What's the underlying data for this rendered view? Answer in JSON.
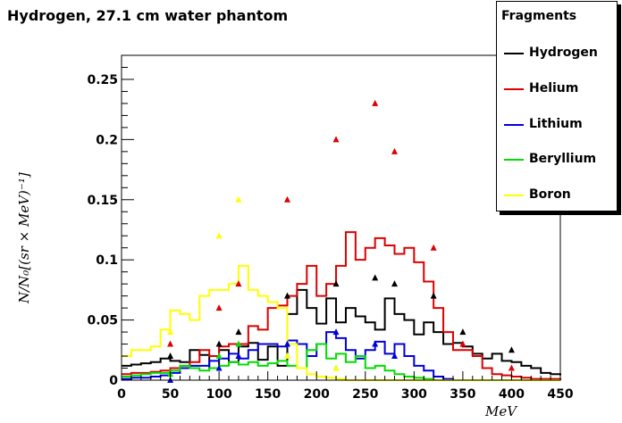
{
  "chart_data": {
    "type": "line",
    "title": "Hydrogen, 27.1 cm water phantom",
    "xlabel": "MeV",
    "ylabel": "N/N₀[(sr × MeV)⁻¹]",
    "xlim": [
      0,
      450
    ],
    "ylim": [
      0,
      0.27
    ],
    "xticks": [
      "0",
      "50",
      "100",
      "150",
      "200",
      "250",
      "300",
      "350",
      "400",
      "450"
    ],
    "yticks": [
      "0",
      "0.05",
      "0.1",
      "0.15",
      "0.2",
      "0.25"
    ],
    "grid": false,
    "legend_title": "Fragments",
    "legend_position": "top-right",
    "bin_width": 10,
    "series": [
      {
        "name": "Hydrogen",
        "color": "#000000",
        "style": "step",
        "y": [
          0.012,
          0.013,
          0.014,
          0.015,
          0.018,
          0.016,
          0.015,
          0.025,
          0.021,
          0.01,
          0.025,
          0.015,
          0.028,
          0.031,
          0.017,
          0.028,
          0.012,
          0.055,
          0.075,
          0.06,
          0.047,
          0.068,
          0.048,
          0.06,
          0.053,
          0.048,
          0.042,
          0.068,
          0.055,
          0.05,
          0.038,
          0.048,
          0.04,
          0.03,
          0.031,
          0.028,
          0.022,
          0.018,
          0.022,
          0.016,
          0.015,
          0.012,
          0.01,
          0.006,
          0.005,
          0.004
        ]
      },
      {
        "name": "Helium",
        "color": "#dd0000",
        "style": "step",
        "y": [
          0.005,
          0.006,
          0.006,
          0.007,
          0.008,
          0.01,
          0.012,
          0.015,
          0.025,
          0.02,
          0.028,
          0.03,
          0.03,
          0.045,
          0.042,
          0.06,
          0.062,
          0.07,
          0.08,
          0.095,
          0.07,
          0.08,
          0.095,
          0.123,
          0.1,
          0.11,
          0.118,
          0.112,
          0.105,
          0.11,
          0.098,
          0.082,
          0.06,
          0.04,
          0.025,
          0.025,
          0.02,
          0.01,
          0.005,
          0.004,
          0.003,
          0.002,
          0.001,
          0.001,
          0.001,
          0.0
        ]
      },
      {
        "name": "Lithium",
        "color": "#0000dd",
        "style": "step",
        "y": [
          0.001,
          0.002,
          0.002,
          0.003,
          0.004,
          0.006,
          0.01,
          0.012,
          0.012,
          0.016,
          0.018,
          0.022,
          0.018,
          0.025,
          0.03,
          0.03,
          0.028,
          0.033,
          0.03,
          0.02,
          0.03,
          0.04,
          0.035,
          0.025,
          0.018,
          0.025,
          0.032,
          0.022,
          0.03,
          0.02,
          0.012,
          0.008,
          0.003,
          0.001,
          0.0,
          0.0,
          0.0,
          0.0,
          0.0,
          0.0,
          0.0,
          0.0,
          0.0,
          0.0,
          0.0,
          0.0
        ]
      },
      {
        "name": "Beryllium",
        "color": "#00dd00",
        "style": "step",
        "y": [
          0.003,
          0.004,
          0.005,
          0.006,
          0.006,
          0.008,
          0.012,
          0.01,
          0.008,
          0.01,
          0.012,
          0.015,
          0.013,
          0.015,
          0.012,
          0.014,
          0.016,
          0.012,
          0.01,
          0.025,
          0.03,
          0.018,
          0.022,
          0.015,
          0.02,
          0.01,
          0.012,
          0.008,
          0.005,
          0.003,
          0.002,
          0.001,
          0.0,
          0.0,
          0.0,
          0.0,
          0.0,
          0.0,
          0.0,
          0.0,
          0.0,
          0.0,
          0.0,
          0.0,
          0.0,
          0.0
        ]
      },
      {
        "name": "Boron",
        "color": "#ffff00",
        "style": "step",
        "y": [
          0.02,
          0.025,
          0.025,
          0.028,
          0.042,
          0.058,
          0.055,
          0.05,
          0.07,
          0.075,
          0.075,
          0.08,
          0.095,
          0.075,
          0.07,
          0.065,
          0.06,
          0.03,
          0.01,
          0.005,
          0.003,
          0.002,
          0.001,
          0.0,
          0.0,
          0.0,
          0.0,
          0.0,
          0.0,
          0.0,
          0.0,
          0.0,
          0.0,
          0.0,
          0.0,
          0.0,
          0.0,
          0.0,
          0.0,
          0.0,
          0.0,
          0.0,
          0.0,
          0.0,
          0.0,
          0.0
        ]
      }
    ],
    "markers": [
      {
        "series": "Hydrogen",
        "color": "#000000",
        "points": [
          [
            50,
            0.02
          ],
          [
            100,
            0.03
          ],
          [
            120,
            0.04
          ],
          [
            170,
            0.07
          ],
          [
            220,
            0.08
          ],
          [
            260,
            0.085
          ],
          [
            280,
            0.08
          ],
          [
            320,
            0.07
          ],
          [
            350,
            0.04
          ],
          [
            400,
            0.025
          ]
        ]
      },
      {
        "series": "Helium",
        "color": "#dd0000",
        "points": [
          [
            50,
            0.03
          ],
          [
            100,
            0.06
          ],
          [
            120,
            0.08
          ],
          [
            170,
            0.15
          ],
          [
            220,
            0.2
          ],
          [
            260,
            0.23
          ],
          [
            280,
            0.19
          ],
          [
            320,
            0.11
          ],
          [
            350,
            0.03
          ],
          [
            400,
            0.01
          ]
        ]
      },
      {
        "series": "Lithium",
        "color": "#0000dd",
        "points": [
          [
            50,
            0.0
          ],
          [
            100,
            0.01
          ],
          [
            120,
            0.02
          ],
          [
            170,
            0.03
          ],
          [
            220,
            0.04
          ],
          [
            260,
            0.03
          ],
          [
            280,
            0.02
          ]
        ]
      },
      {
        "series": "Beryllium",
        "color": "#00dd00",
        "points": [
          [
            50,
            0.005
          ],
          [
            100,
            0.02
          ],
          [
            120,
            0.03
          ],
          [
            170,
            0.02
          ],
          [
            220,
            0.01
          ]
        ]
      },
      {
        "series": "Boron",
        "color": "#ffff00",
        "points": [
          [
            50,
            0.04
          ],
          [
            100,
            0.12
          ],
          [
            120,
            0.15
          ],
          [
            170,
            0.02
          ],
          [
            220,
            0.01
          ]
        ]
      }
    ]
  }
}
